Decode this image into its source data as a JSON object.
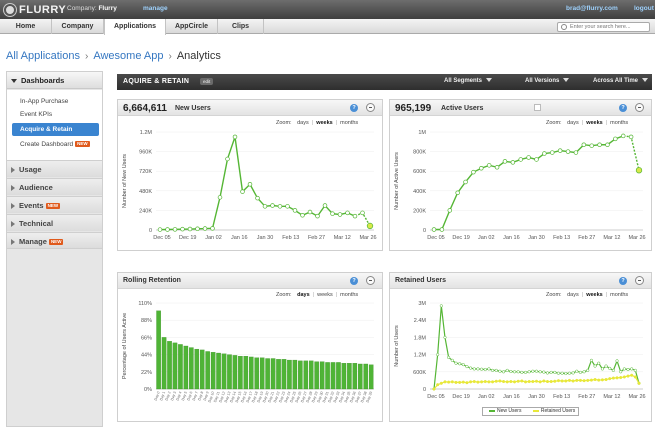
{
  "topbar": {
    "logo": "FLURRY",
    "company_label": "Company:",
    "company_name": "Flurry",
    "manage": "manage",
    "user": "brad@flurry.com",
    "logout": "logout"
  },
  "nav": {
    "tabs": [
      "Home",
      "Company",
      "Applications",
      "AppCircle",
      "Clips"
    ],
    "active": "Applications",
    "search_placeholder": "Enter your search here..."
  },
  "breadcrumb": {
    "root": "All Applications",
    "app": "Awesome App",
    "current": "Analytics",
    "separator": "›"
  },
  "sidebar": {
    "header": "Dashboards",
    "items": [
      "In-App Purchase",
      "Event KPIs",
      "Acquire & Retain",
      "Create Dashboard"
    ],
    "active": "Acquire & Retain",
    "new_badge": "NEW",
    "groups": [
      {
        "label": "Usage",
        "new": false
      },
      {
        "label": "Audience",
        "new": false
      },
      {
        "label": "Events",
        "new": true
      },
      {
        "label": "Technical",
        "new": false
      },
      {
        "label": "Manage",
        "new": true
      }
    ]
  },
  "header": {
    "title": "AQUIRE & RETAIN",
    "edit": "edit",
    "segments": "All Segments",
    "versions": "All Versions",
    "range": "Across All Time"
  },
  "zoom": {
    "label": "Zoom:",
    "days": "days",
    "weeks": "weeks",
    "months": "months"
  },
  "panels": {
    "new_users": {
      "metric": "6,664,611",
      "label": "New Users",
      "zoom_selected": "weeks"
    },
    "active_users": {
      "metric": "965,199",
      "label": "Active Users",
      "zoom_selected": "weeks"
    },
    "rolling_retention": {
      "title": "Rolling Retention",
      "zoom_selected": "days"
    },
    "retained_users": {
      "title": "Retained Users",
      "zoom_selected": "weeks"
    }
  },
  "colors": {
    "accent": "#3a84d0",
    "series_green": "#55b635",
    "series_yellow": "#e8e83a",
    "bar_green": "#4fb436"
  },
  "icons": {
    "help": "question-circle-icon",
    "share": "share-icon",
    "search": "search-icon"
  },
  "chart_data": [
    {
      "type": "line",
      "title": "",
      "ylabel": "Number of New Users",
      "yticks": [
        "0",
        "240K",
        "480K",
        "720K",
        "960K",
        "1.2M"
      ],
      "ylim": [
        0,
        1200000
      ],
      "xticks": [
        "Dec 05",
        "Dec 19",
        "Jan 02",
        "Jan 16",
        "Jan 30",
        "Feb 13",
        "Feb 27",
        "Mar 12",
        "Mar 26"
      ],
      "series": [
        {
          "values": [
            5000,
            6000,
            8000,
            10000,
            12000,
            15000,
            18000,
            20000,
            400000,
            870000,
            1140000,
            470000,
            560000,
            390000,
            290000,
            300000,
            290000,
            290000,
            240000,
            180000,
            220000,
            170000,
            300000,
            200000,
            190000,
            210000,
            170000,
            210000,
            50000
          ]
        }
      ]
    },
    {
      "type": "line",
      "title": "",
      "ylabel": "Number of Active Users",
      "yticks": [
        "0",
        "200K",
        "400K",
        "600K",
        "800K",
        "1M"
      ],
      "ylim": [
        0,
        1000000
      ],
      "xticks": [
        "Dec 05",
        "Dec 19",
        "Jan 02",
        "Jan 16",
        "Jan 30",
        "Feb 13",
        "Feb 27",
        "Mar 12",
        "Mar 26"
      ],
      "series": [
        {
          "values": [
            5000,
            5000,
            200000,
            380000,
            490000,
            590000,
            630000,
            660000,
            640000,
            700000,
            690000,
            720000,
            740000,
            720000,
            780000,
            790000,
            810000,
            800000,
            790000,
            870000,
            860000,
            870000,
            870000,
            930000,
            960000,
            950000,
            610000
          ]
        }
      ]
    },
    {
      "type": "bar",
      "title": "",
      "ylabel": "Percentage of Users Active",
      "yticks": [
        "0%",
        "22%",
        "44%",
        "66%",
        "88%",
        "110%"
      ],
      "ylim": [
        0,
        110
      ],
      "categories": [
        "Day 0",
        "Day 1",
        "Day 2",
        "Day 3",
        "Day 4",
        "Day 5",
        "Day 6",
        "Day 7",
        "Day 8",
        "Day 9",
        "Day 10",
        "Day 11",
        "Day 12",
        "Day 13",
        "Day 14",
        "Day 15",
        "Day 16",
        "Day 17",
        "Day 18",
        "Day 19",
        "Day 20",
        "Day 21",
        "Day 22",
        "Day 23",
        "Day 24",
        "Day 25",
        "Day 26",
        "Day 27",
        "Day 28",
        "Day 29",
        "Day 30",
        "Day 31",
        "Day 32",
        "Day 33",
        "Day 34",
        "Day 35",
        "Day 36",
        "Day 37",
        "Day 38",
        "Day 39"
      ],
      "values": [
        100,
        66,
        61,
        59,
        57,
        55,
        53,
        51,
        50,
        48,
        47,
        46,
        45,
        44,
        43,
        42,
        42,
        41,
        40,
        40,
        39,
        39,
        38,
        38,
        37,
        37,
        36,
        36,
        36,
        35,
        35,
        34,
        34,
        34,
        33,
        33,
        33,
        32,
        32,
        31
      ]
    },
    {
      "type": "line",
      "title": "",
      "ylabel": "Number of Users",
      "yticks": [
        "0",
        "600K",
        "1.2M",
        "1.8M",
        "2.4M",
        "3M"
      ],
      "ylim": [
        0,
        3000000
      ],
      "xticks": [
        "Dec 05",
        "Dec 19",
        "Jan 02",
        "Jan 16",
        "Jan 30",
        "Feb 13",
        "Feb 27",
        "Mar 12",
        "Mar 26"
      ],
      "legend": [
        "New Users",
        "Retained Users"
      ],
      "series": [
        {
          "name": "New Users",
          "values": [
            0,
            1200000,
            2900000,
            1800000,
            1100000,
            1000000,
            900000,
            880000,
            850000,
            780000,
            730000,
            700000,
            700000,
            690000,
            680000,
            700000,
            650000,
            650000,
            620000,
            600000,
            650000,
            610000,
            600000,
            600000,
            580000,
            580000,
            600000,
            620000,
            620000,
            600000,
            590000,
            560000,
            580000,
            580000,
            550000,
            550000,
            540000,
            550000,
            560000,
            620000,
            580000,
            600000,
            650000,
            1000000,
            800000,
            900000,
            700000,
            800000,
            720000,
            650000,
            980000,
            600000,
            700000,
            680000,
            700000,
            650000,
            200000
          ]
        },
        {
          "name": "Retained Users",
          "values": [
            0,
            150000,
            200000,
            250000,
            240000,
            250000,
            230000,
            230000,
            240000,
            220000,
            250000,
            260000,
            240000,
            250000,
            260000,
            250000,
            250000,
            270000,
            280000,
            260000,
            250000,
            260000,
            250000,
            270000,
            280000,
            250000,
            260000,
            260000,
            270000,
            250000,
            280000,
            260000,
            260000,
            270000,
            290000,
            280000,
            280000,
            300000,
            280000,
            300000,
            300000,
            290000,
            300000,
            310000,
            330000,
            310000,
            320000,
            330000,
            360000,
            380000,
            390000,
            400000,
            420000,
            450000,
            480000,
            420000,
            200000
          ]
        }
      ]
    }
  ]
}
